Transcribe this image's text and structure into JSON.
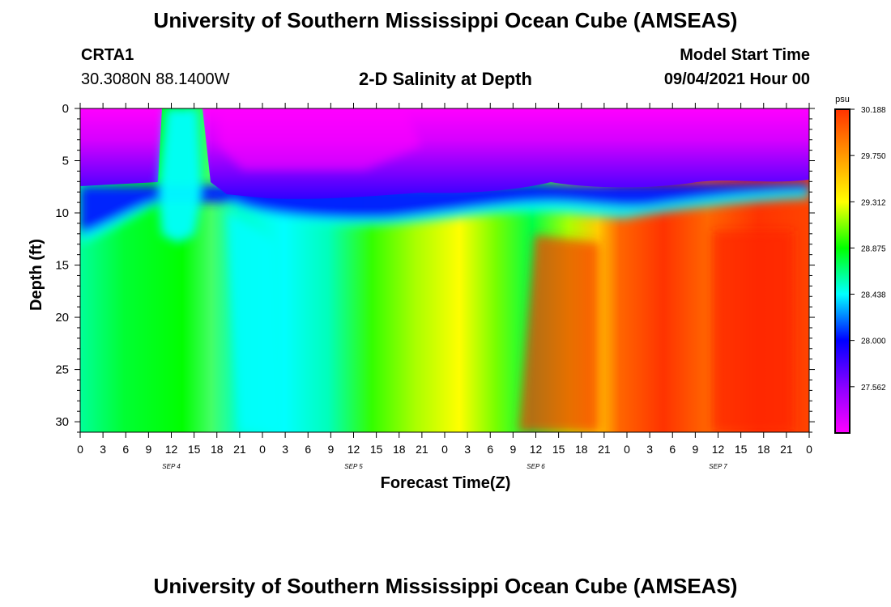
{
  "header": {
    "title": "University of Southern Mississippi Ocean Cube (AMSEAS)",
    "station_id": "CRTA1",
    "location": "30.3080N  88.1400W",
    "model_start_label": "Model Start Time",
    "model_start_value": "09/04/2021 Hour 00"
  },
  "footer": {
    "title": "University of Southern Mississippi Ocean Cube (AMSEAS)"
  },
  "chart_data": {
    "type": "heatmap",
    "title": "2-D Salinity at Depth",
    "xlabel": "Forecast Time(Z)",
    "ylabel": "Depth (ft)",
    "ylim": [
      0,
      31
    ],
    "y_ticks": [
      0,
      5,
      10,
      15,
      20,
      25,
      30
    ],
    "x_tick_labels": [
      "0",
      "3",
      "6",
      "9",
      "12",
      "15",
      "18",
      "21",
      "0",
      "3",
      "6",
      "9",
      "12",
      "15",
      "18",
      "21",
      "0",
      "3",
      "6",
      "9",
      "12",
      "15",
      "18",
      "21",
      "0",
      "3",
      "6",
      "9",
      "12",
      "15",
      "18",
      "21",
      "0"
    ],
    "day_labels": [
      "SEP 4",
      "SEP 5",
      "SEP 6",
      "SEP 7"
    ],
    "colorbar": {
      "unit": "psu",
      "min": 27.124,
      "max": 30.188,
      "tick_values": [
        "30.188",
        "29.750",
        "29.312",
        "28.875",
        "28.438",
        "28.000",
        "27.562"
      ],
      "colors": [
        "#ff00ff",
        "#8a00ff",
        "#0000ff",
        "#00ffff",
        "#00ff00",
        "#ffff00",
        "#ff9900",
        "#ff3300"
      ]
    },
    "features": {
      "surface_layer_0_8ft": "low salinity, ~27.2-27.9 psu (magenta/purple)",
      "halocline_9_12ft": "~28.0-28.4 psu (blue/cyan)",
      "bottom_layer": "increasing salinity with time, up to ~30.0 psu (red) on SEP 6-7"
    }
  }
}
